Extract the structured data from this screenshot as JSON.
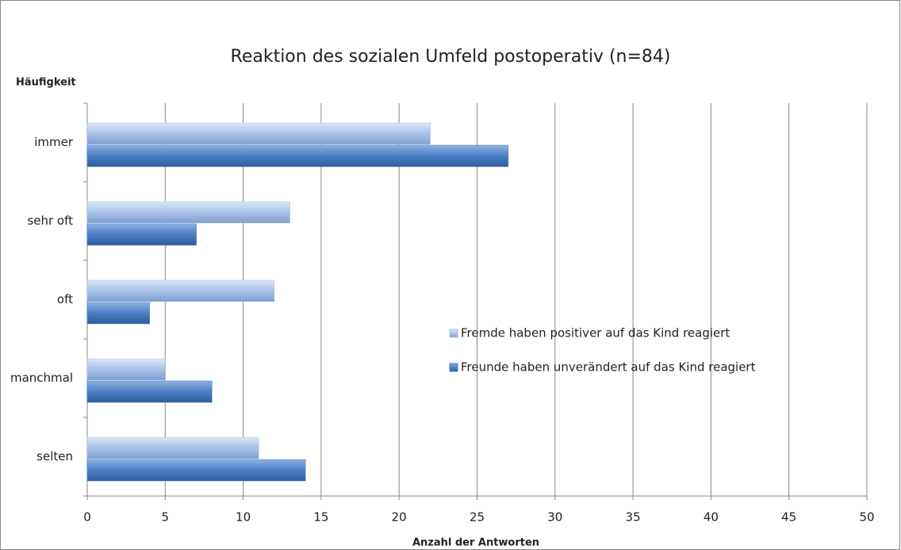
{
  "chart_data": {
    "type": "hbar",
    "title": "Reaktion des sozialen Umfeld postoperativ (n=84)",
    "y_label": "Häufigkeit",
    "x_label": "Anzahl der Antworten",
    "categories": [
      "immer",
      "sehr oft",
      "oft",
      "manchmal",
      "selten"
    ],
    "series": [
      {
        "name": "Fremde haben positiver auf das Kind reagiert",
        "color": "#a9c1e6",
        "values": [
          22,
          13,
          12,
          5,
          11
        ]
      },
      {
        "name": "Freunde haben unverändert auf das Kind reagiert",
        "color": "#4a7fc6",
        "values": [
          27,
          7,
          4,
          8,
          14
        ]
      }
    ],
    "xlim": [
      0,
      50
    ],
    "xticks": [
      0,
      5,
      10,
      15,
      20,
      25,
      30,
      35,
      40,
      45,
      50
    ],
    "grid": true
  }
}
